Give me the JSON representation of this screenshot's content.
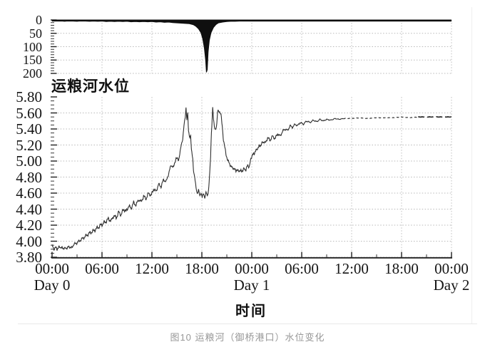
{
  "figure": {
    "title": "运粮河水位",
    "xlabel": "时间",
    "caption": "图10 运粮河（御桥港口）水位变化"
  },
  "colors": {
    "ink": "#1f1f1f",
    "curve": "#2f2f2f",
    "gridline": "#b9b9b9",
    "rain_fill": "#0f0f0f",
    "caption": "#979797"
  },
  "chart_data": [
    {
      "panel": "rain-top",
      "type": "area",
      "y_axis": {
        "ticks": [
          "0",
          "50",
          "100",
          "150",
          "200"
        ],
        "values": [
          0,
          50,
          100,
          150,
          200
        ],
        "max": 200,
        "minor_step": 10,
        "inverted": true
      },
      "x_range_hours": [
        0,
        48
      ],
      "grid": true,
      "points": [
        [
          0,
          3
        ],
        [
          0.5,
          4
        ],
        [
          1,
          3
        ],
        [
          1.5,
          5
        ],
        [
          2,
          3
        ],
        [
          2.5,
          4
        ],
        [
          3,
          5
        ],
        [
          3.5,
          3
        ],
        [
          4,
          4
        ],
        [
          4.5,
          5
        ],
        [
          5,
          4
        ],
        [
          5.5,
          5
        ],
        [
          6,
          4
        ],
        [
          6.5,
          6
        ],
        [
          7,
          5
        ],
        [
          7.5,
          6
        ],
        [
          8,
          5
        ],
        [
          8.5,
          6
        ],
        [
          9,
          5
        ],
        [
          9.5,
          7
        ],
        [
          10,
          6
        ],
        [
          10.5,
          7
        ],
        [
          11,
          6
        ],
        [
          11.5,
          7
        ],
        [
          12,
          6
        ],
        [
          12.5,
          8
        ],
        [
          13,
          7
        ],
        [
          13.5,
          9
        ],
        [
          14,
          8
        ],
        [
          14.5,
          10
        ],
        [
          15,
          11
        ],
        [
          15.5,
          12
        ],
        [
          16,
          13
        ],
        [
          16.5,
          14
        ],
        [
          17,
          18
        ],
        [
          17.3,
          24
        ],
        [
          17.6,
          33
        ],
        [
          17.9,
          48
        ],
        [
          18.1,
          70
        ],
        [
          18.3,
          105
        ],
        [
          18.45,
          150
        ],
        [
          18.55,
          196
        ],
        [
          18.65,
          186
        ],
        [
          18.75,
          120
        ],
        [
          18.9,
          76
        ],
        [
          19.1,
          48
        ],
        [
          19.4,
          28
        ],
        [
          19.7,
          17
        ],
        [
          20,
          11
        ],
        [
          20.5,
          8
        ],
        [
          21,
          6
        ],
        [
          21.5,
          5
        ],
        [
          22,
          5
        ],
        [
          22.5,
          4
        ],
        [
          23,
          3
        ],
        [
          23.5,
          3
        ],
        [
          24,
          2
        ],
        [
          24.02,
          0
        ],
        [
          48,
          0
        ]
      ]
    },
    {
      "panel": "water-level-main",
      "type": "line",
      "title": "运粮河水位",
      "y_axis": {
        "tick_labels": [
          "5.80",
          "5.60",
          "5.40",
          "5.20",
          "5.00",
          "4.80",
          "4.60",
          "4.40",
          "4.20",
          "4.00",
          "3.80"
        ],
        "min": 3.8,
        "max": 5.8,
        "major_step": 0.2,
        "minor_step": 0.05
      },
      "x_axis": {
        "tick_labels": [
          "00:00",
          "06:00",
          "12:00",
          "18:00",
          "00:00",
          "06:00",
          "12:00",
          "18:00",
          "00:00"
        ],
        "tick_hours": [
          0,
          6,
          12,
          18,
          24,
          30,
          36,
          42,
          48
        ],
        "minor_step_hours": 3,
        "day_labels": [
          {
            "text": "Day 0",
            "hour": 0
          },
          {
            "text": "Day 1",
            "hour": 24
          },
          {
            "text": "Day 2",
            "hour": 48
          }
        ],
        "label": "时间"
      },
      "grid": true,
      "dashed_tail_from_hour": 35,
      "points": [
        [
          0,
          3.95
        ],
        [
          0.2,
          3.89
        ],
        [
          0.4,
          3.94
        ],
        [
          0.6,
          3.88
        ],
        [
          0.8,
          3.95
        ],
        [
          1,
          3.9
        ],
        [
          1.2,
          3.94
        ],
        [
          1.4,
          3.89
        ],
        [
          1.6,
          3.93
        ],
        [
          1.8,
          3.9
        ],
        [
          2,
          3.94
        ],
        [
          2.3,
          3.91
        ],
        [
          2.6,
          3.96
        ],
        [
          3,
          3.98
        ],
        [
          3.5,
          4.02
        ],
        [
          4,
          4.06
        ],
        [
          4.5,
          4.1
        ],
        [
          5,
          4.13
        ],
        [
          5.5,
          4.17
        ],
        [
          6,
          4.21
        ],
        [
          6.4,
          4.24
        ],
        [
          6.8,
          4.28
        ],
        [
          7.1,
          4.25
        ],
        [
          7.4,
          4.32
        ],
        [
          7.7,
          4.29
        ],
        [
          8,
          4.36
        ],
        [
          8.3,
          4.33
        ],
        [
          8.6,
          4.4
        ],
        [
          8.9,
          4.37
        ],
        [
          9.2,
          4.44
        ],
        [
          9.5,
          4.41
        ],
        [
          9.8,
          4.48
        ],
        [
          10.1,
          4.45
        ],
        [
          10.4,
          4.52
        ],
        [
          10.7,
          4.49
        ],
        [
          11,
          4.56
        ],
        [
          11.3,
          4.53
        ],
        [
          11.6,
          4.6
        ],
        [
          11.9,
          4.57
        ],
        [
          12.2,
          4.65
        ],
        [
          12.5,
          4.62
        ],
        [
          12.8,
          4.71
        ],
        [
          13.1,
          4.68
        ],
        [
          13.4,
          4.77
        ],
        [
          13.7,
          4.74
        ],
        [
          14,
          4.84
        ],
        [
          14.3,
          4.95
        ],
        [
          14.6,
          4.92
        ],
        [
          14.9,
          5.04
        ],
        [
          15.2,
          5.01
        ],
        [
          15.5,
          5.18
        ],
        [
          15.7,
          5.28
        ],
        [
          15.85,
          5.44
        ],
        [
          16,
          5.54
        ],
        [
          16.1,
          5.67
        ],
        [
          16.2,
          5.52
        ],
        [
          16.3,
          5.6
        ],
        [
          16.4,
          5.36
        ],
        [
          16.55,
          5.3
        ],
        [
          16.65,
          5.33
        ],
        [
          16.75,
          5.13
        ],
        [
          16.9,
          5.03
        ],
        [
          17,
          4.89
        ],
        [
          17.15,
          4.79
        ],
        [
          17.3,
          4.66
        ],
        [
          17.45,
          4.6
        ],
        [
          17.6,
          4.64
        ],
        [
          17.75,
          4.56
        ],
        [
          17.9,
          4.61
        ],
        [
          18.05,
          4.55
        ],
        [
          18.2,
          4.59
        ],
        [
          18.35,
          4.55
        ],
        [
          18.5,
          4.61
        ],
        [
          18.65,
          4.56
        ],
        [
          18.8,
          4.64
        ],
        [
          18.95,
          4.85
        ],
        [
          19.05,
          5.05
        ],
        [
          19.15,
          5.35
        ],
        [
          19.3,
          5.67
        ],
        [
          19.4,
          5.52
        ],
        [
          19.5,
          5.42
        ],
        [
          19.65,
          5.4
        ],
        [
          19.8,
          5.46
        ],
        [
          19.9,
          5.62
        ],
        [
          20.1,
          5.63
        ],
        [
          20.3,
          5.57
        ],
        [
          20.45,
          5.44
        ],
        [
          20.6,
          5.26
        ],
        [
          20.75,
          5.17
        ],
        [
          20.9,
          5.09
        ],
        [
          21.1,
          5.01
        ],
        [
          21.3,
          4.97
        ],
        [
          21.5,
          4.94
        ],
        [
          21.7,
          4.9
        ],
        [
          21.9,
          4.92
        ],
        [
          22.1,
          4.86
        ],
        [
          22.3,
          4.91
        ],
        [
          22.5,
          4.85
        ],
        [
          22.7,
          4.9
        ],
        [
          22.9,
          4.86
        ],
        [
          23.1,
          4.92
        ],
        [
          23.3,
          4.88
        ],
        [
          23.5,
          4.95
        ],
        [
          23.7,
          4.93
        ],
        [
          23.9,
          5.02
        ],
        [
          24.1,
          5.1
        ],
        [
          24.3,
          5.07
        ],
        [
          24.5,
          5.16
        ],
        [
          24.7,
          5.13
        ],
        [
          24.9,
          5.21
        ],
        [
          25.1,
          5.18
        ],
        [
          25.3,
          5.25
        ],
        [
          25.6,
          5.22
        ],
        [
          25.9,
          5.29
        ],
        [
          26.2,
          5.26
        ],
        [
          26.5,
          5.31
        ],
        [
          26.8,
          5.28
        ],
        [
          27.1,
          5.34
        ],
        [
          27.4,
          5.31
        ],
        [
          27.7,
          5.37
        ],
        [
          28,
          5.4
        ],
        [
          28.3,
          5.38
        ],
        [
          28.6,
          5.44
        ],
        [
          28.9,
          5.42
        ],
        [
          29.2,
          5.46
        ],
        [
          29.5,
          5.44
        ],
        [
          29.8,
          5.48
        ],
        [
          30.2,
          5.46
        ],
        [
          30.6,
          5.5
        ],
        [
          31,
          5.48
        ],
        [
          31.4,
          5.51
        ],
        [
          31.8,
          5.49
        ],
        [
          32.2,
          5.52
        ],
        [
          32.6,
          5.5
        ],
        [
          33,
          5.52
        ],
        [
          33.5,
          5.51
        ],
        [
          34,
          5.53
        ],
        [
          34.5,
          5.52
        ],
        [
          35,
          5.53
        ],
        [
          36,
          5.53
        ],
        [
          37,
          5.54
        ],
        [
          38,
          5.53
        ],
        [
          39,
          5.54
        ],
        [
          40,
          5.54
        ],
        [
          41,
          5.54
        ],
        [
          42,
          5.55
        ],
        [
          43,
          5.54
        ],
        [
          44,
          5.55
        ],
        [
          45,
          5.55
        ],
        [
          46,
          5.55
        ],
        [
          47,
          5.55
        ],
        [
          48,
          5.55
        ]
      ]
    }
  ]
}
